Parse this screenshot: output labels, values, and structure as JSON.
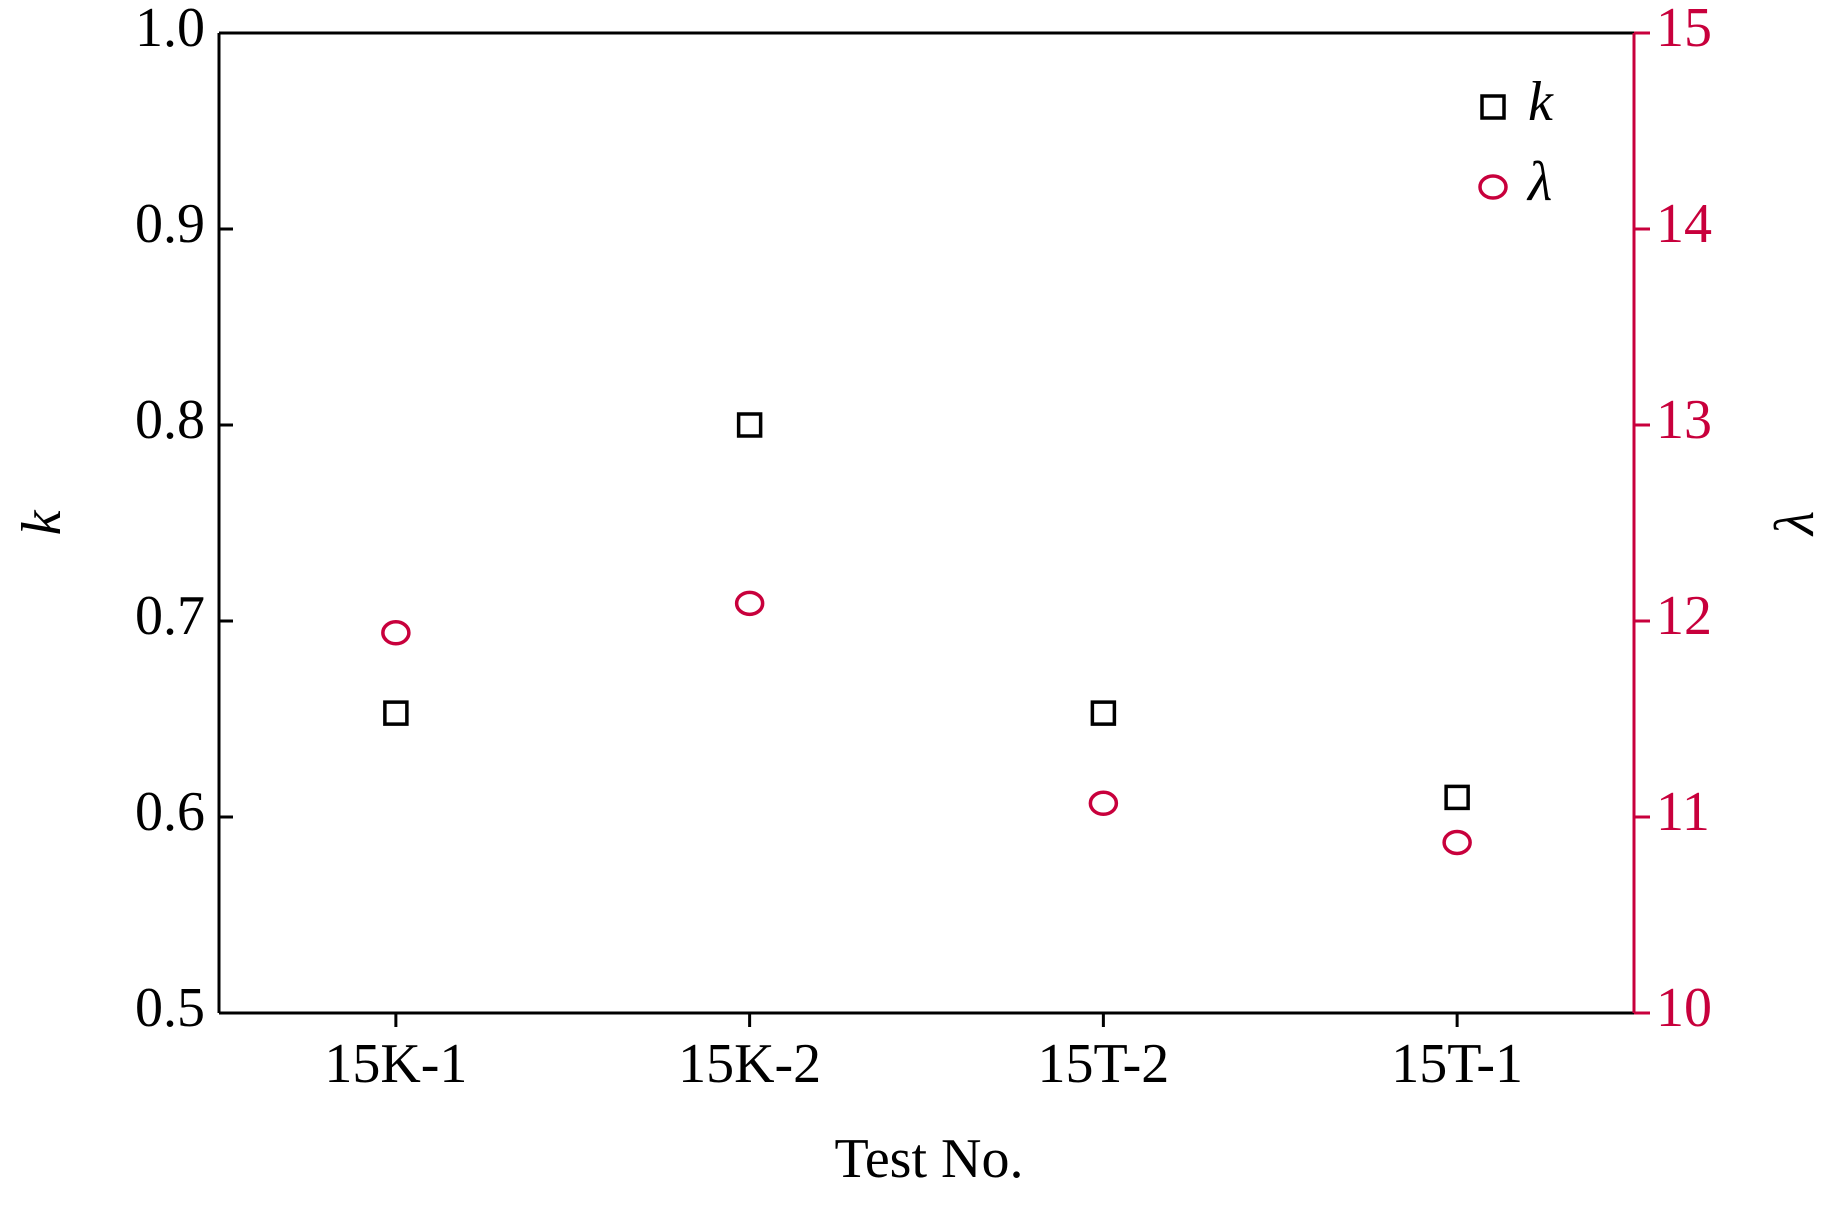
{
  "chart_data": {
    "type": "scatter",
    "x_label": "Test No.",
    "y_label": "k",
    "y2_label": "λ",
    "categories": [
      "15K-1",
      "15K-2",
      "15T-2",
      "15T-1"
    ],
    "series": [
      {
        "name": "k",
        "color": "#000000",
        "marker": "square",
        "values": [
          0.653,
          0.8,
          0.653,
          0.61
        ]
      },
      {
        "name": "λ",
        "color": "#c8003c",
        "marker": "circle",
        "axis": "y2",
        "values": [
          11.94,
          12.09,
          11.07,
          10.87
        ]
      }
    ],
    "ylim": [
      0.5,
      1.0
    ],
    "yticks": [
      {
        "value": 0.5,
        "label": "0.5"
      },
      0.6,
      0.7,
      0.8,
      0.9,
      {
        "value": 1.0,
        "label": "1.0"
      }
    ],
    "y2lim": [
      10,
      15
    ],
    "y2ticks": [
      10,
      11,
      12,
      13,
      14,
      15
    ],
    "legend": "upper right"
  }
}
